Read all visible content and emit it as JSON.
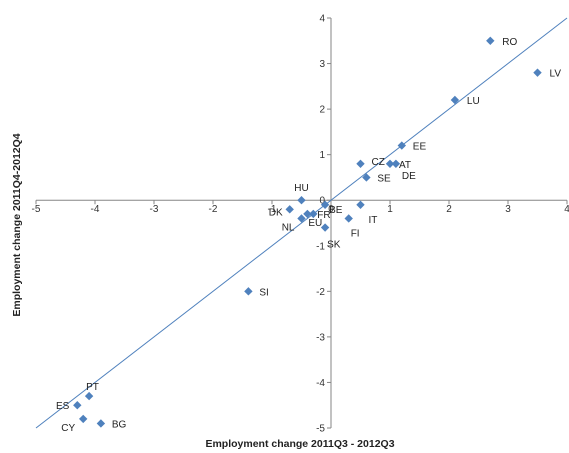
{
  "chart_data": {
    "type": "scatter",
    "title": "",
    "xlabel": "Employment change 2011Q3 - 2012Q3",
    "ylabel": "Employment change 2011Q4-2012Q4",
    "xlim": [
      -5,
      4
    ],
    "ylim": [
      -5,
      4
    ],
    "x_ticks": [
      "-5",
      "-4",
      "-3",
      "-2",
      "-1",
      "0",
      "1",
      "2",
      "3",
      "4"
    ],
    "y_ticks": [
      "-5",
      "-4",
      "-3",
      "-2",
      "-1",
      "0",
      "1",
      "2",
      "3",
      "4"
    ],
    "grid": false,
    "legend": "none",
    "marker": "diamond",
    "marker_color": "#4F81BD",
    "trendline_color": "#4F81BD",
    "trendline": {
      "slope": 1.0,
      "intercept": 0.0
    },
    "points": [
      {
        "label": "RO",
        "x": 2.7,
        "y": 3.5
      },
      {
        "label": "LV",
        "x": 3.5,
        "y": 2.8
      },
      {
        "label": "LU",
        "x": 2.1,
        "y": 2.2
      },
      {
        "label": "EE",
        "x": 1.2,
        "y": 1.2
      },
      {
        "label": "CZ",
        "x": 0.5,
        "y": 0.8
      },
      {
        "label": "AT",
        "x": 1.0,
        "y": 0.8
      },
      {
        "label": "DE",
        "x": 1.1,
        "y": 0.8
      },
      {
        "label": "SE",
        "x": 0.6,
        "y": 0.5
      },
      {
        "label": "HU",
        "x": -0.5,
        "y": 0.0
      },
      {
        "label": "DK",
        "x": -0.7,
        "y": -0.2
      },
      {
        "label": "FR",
        "x": -0.3,
        "y": -0.3
      },
      {
        "label": "BE",
        "x": -0.1,
        "y": -0.1
      },
      {
        "label": "NL",
        "x": -0.5,
        "y": -0.4
      },
      {
        "label": "EU",
        "x": -0.4,
        "y": -0.3
      },
      {
        "label": "SK",
        "x": -0.1,
        "y": -0.6
      },
      {
        "label": "FI",
        "x": 0.3,
        "y": -0.4
      },
      {
        "label": "IT",
        "x": 0.5,
        "y": -0.1
      },
      {
        "label": "SI",
        "x": -1.4,
        "y": -2.0
      },
      {
        "label": "PT",
        "x": -4.1,
        "y": -4.3
      },
      {
        "label": "ES",
        "x": -4.3,
        "y": -4.5
      },
      {
        "label": "CY",
        "x": -4.2,
        "y": -4.8
      },
      {
        "label": "BG",
        "x": -3.9,
        "y": -4.9
      }
    ]
  }
}
